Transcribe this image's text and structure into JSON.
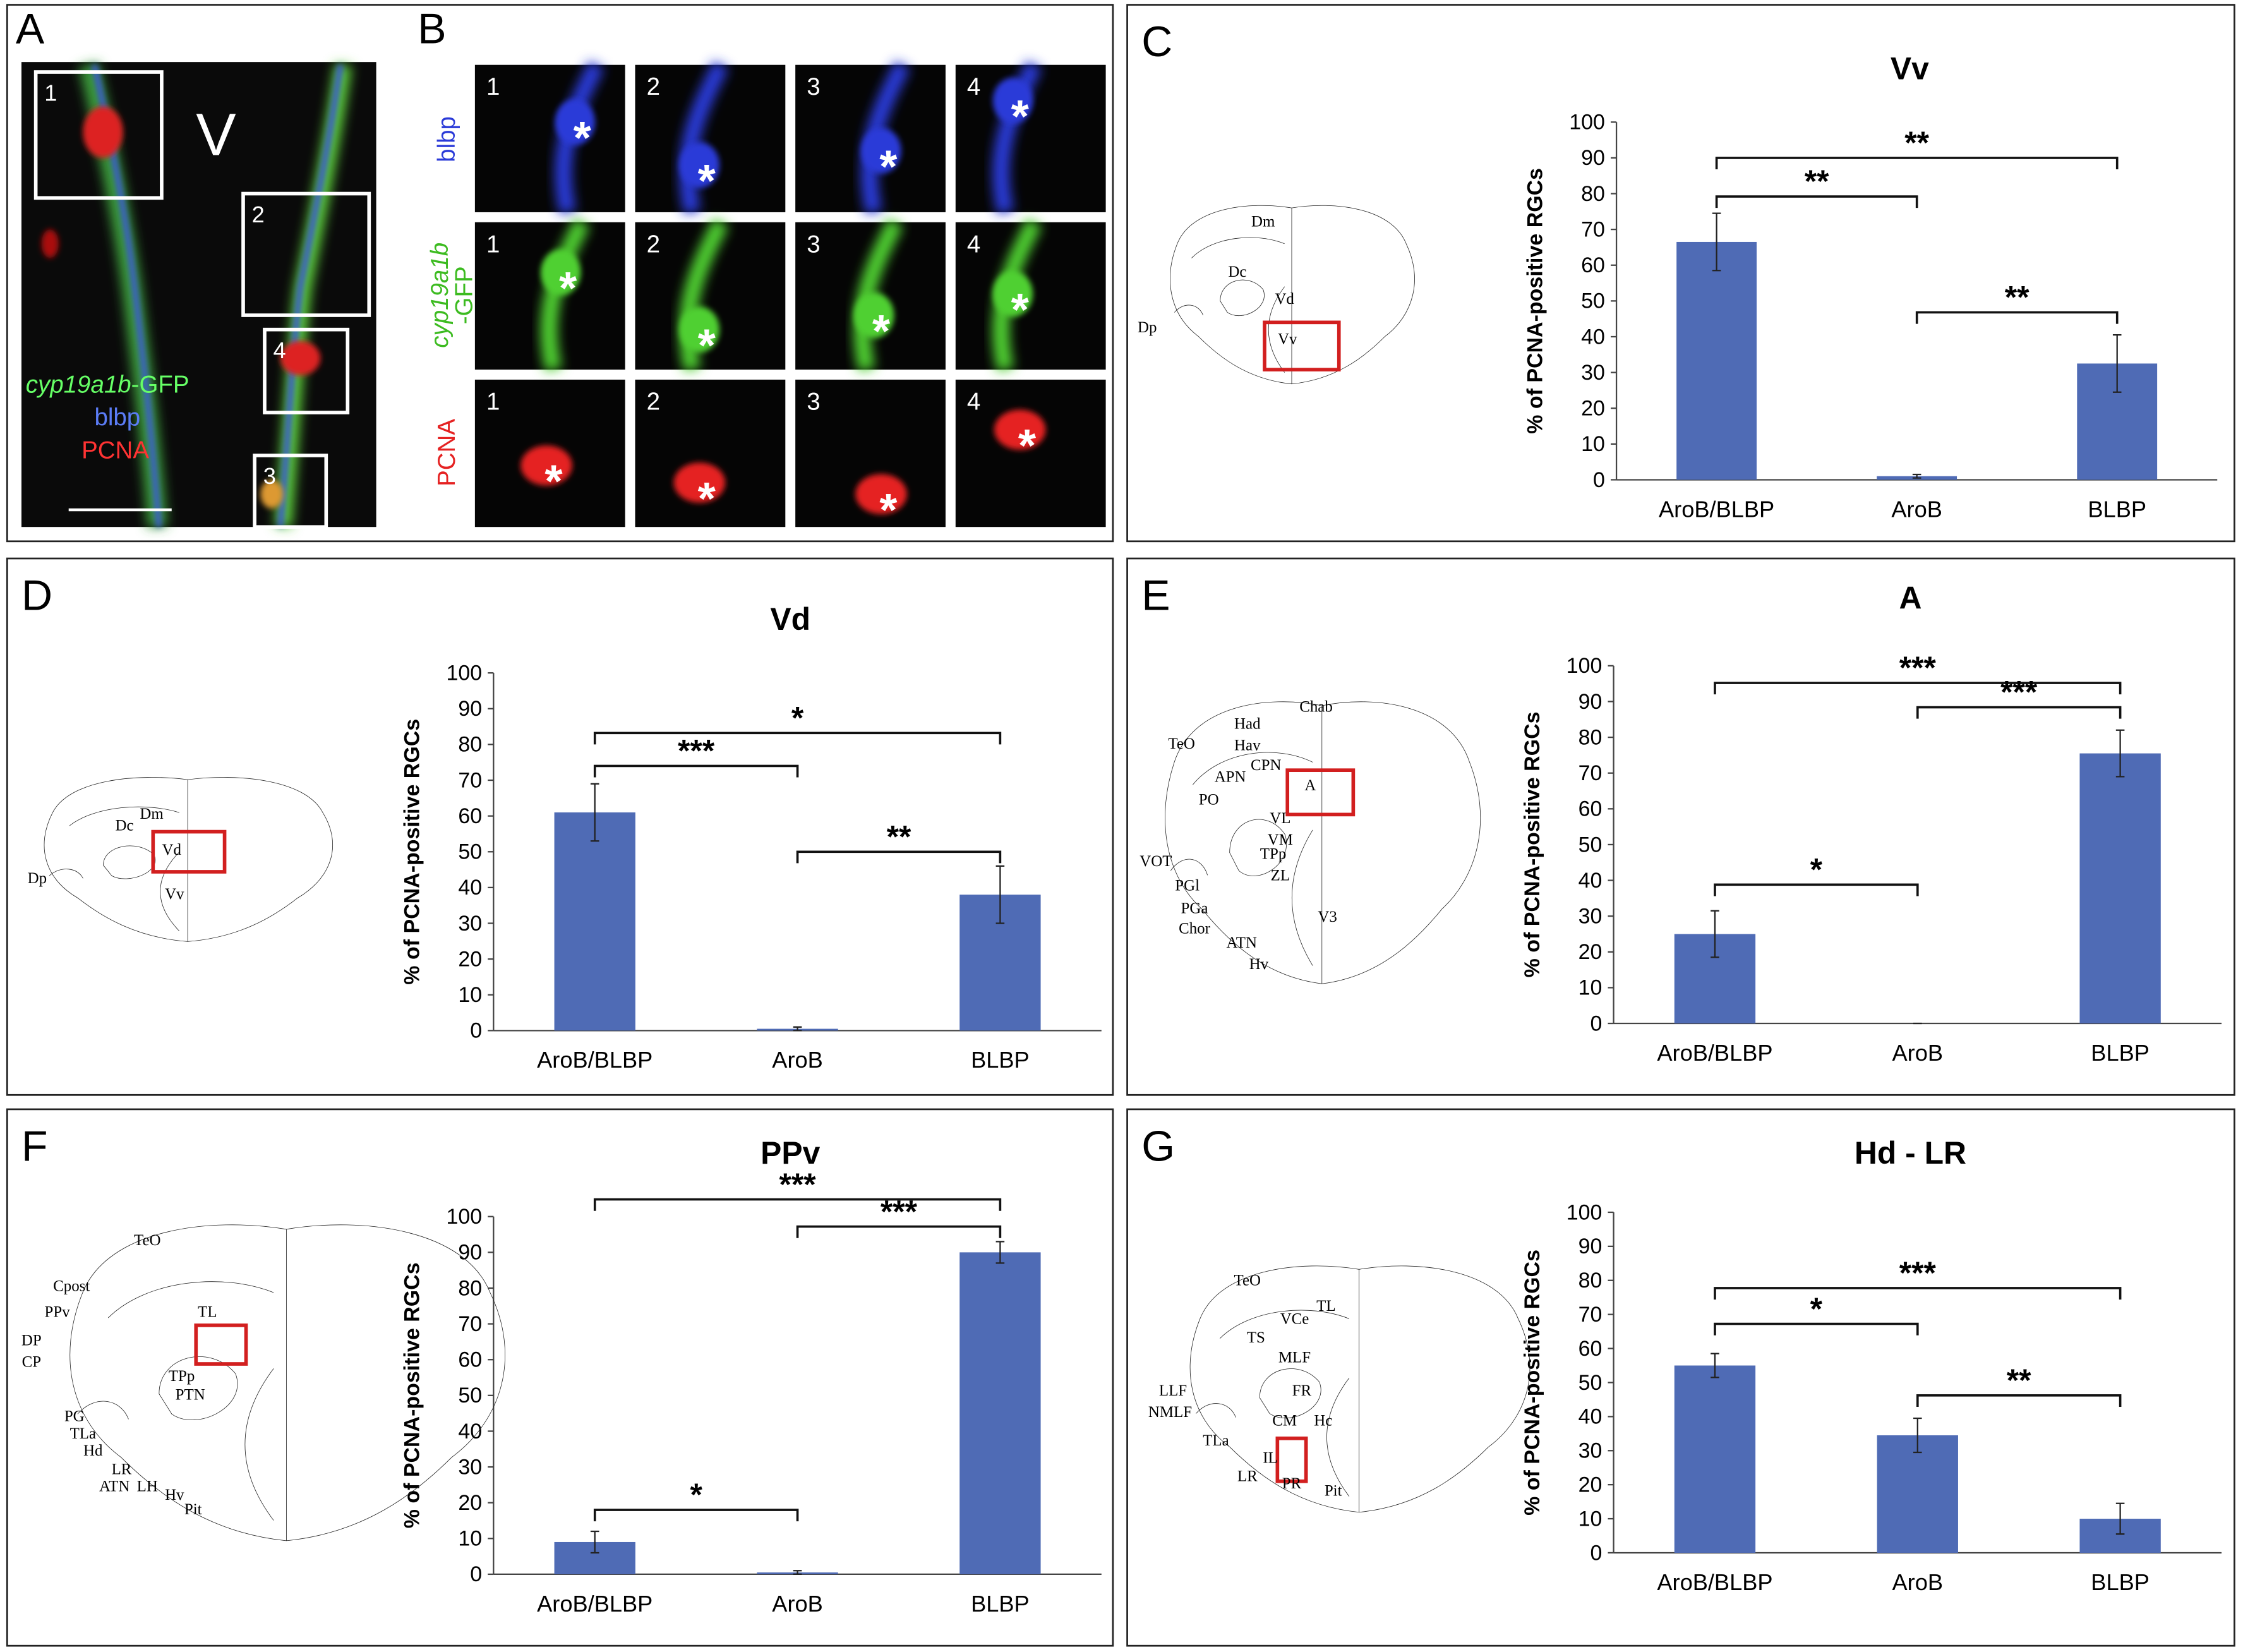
{
  "panel_a": {
    "letter": "A",
    "boxes": [
      "1",
      "2",
      "4",
      "3"
    ],
    "region": "V",
    "gene": "cyp19a1b",
    "gene_suffix": "-GFP",
    "channels": [
      "blbp",
      "PCNA"
    ]
  },
  "panel_b": {
    "letter": "B",
    "row_labels": [
      "blbp",
      "PCNA"
    ],
    "gfp_label": [
      "cyp19a1b",
      "-GFP"
    ],
    "cells": [
      "1",
      "2",
      "3",
      "4"
    ],
    "marker": "*"
  },
  "chart_data": [
    {
      "type": "bar",
      "panel": "C",
      "title": "Vv",
      "ylabel": "% of PCNA-positive RGCs",
      "categories": [
        "AroB/BLBP",
        "AroB",
        "BLBP"
      ],
      "values": [
        66.5,
        1,
        32.5
      ],
      "errors": [
        8,
        0.5,
        8
      ],
      "color": "#4f6bb5",
      "ylim": [
        0,
        100
      ],
      "yticks": [
        0,
        10,
        20,
        30,
        40,
        50,
        60,
        70,
        80,
        90,
        100
      ],
      "annotations": [
        {
          "text": "**",
          "between": [
            "AroB/BLBP",
            "AroB"
          ]
        },
        {
          "text": "**",
          "between": [
            "AroB/BLBP",
            "BLBP"
          ]
        },
        {
          "text": "**",
          "between": [
            "AroB",
            "BLBP"
          ]
        }
      ],
      "diagram_labels": [
        "Dm",
        "Dc",
        "Vd",
        "Vv",
        "Dp"
      ]
    },
    {
      "type": "bar",
      "panel": "D",
      "title": "Vd",
      "ylabel": "% of PCNA-positive RGCs",
      "categories": [
        "AroB/BLBP",
        "AroB",
        "BLBP"
      ],
      "values": [
        61,
        0.5,
        38
      ],
      "errors": [
        8,
        0.5,
        8
      ],
      "color": "#4f6bb5",
      "ylim": [
        0,
        100
      ],
      "yticks": [
        0,
        10,
        20,
        30,
        40,
        50,
        60,
        70,
        80,
        90,
        100
      ],
      "annotations": [
        {
          "text": "***",
          "between": [
            "AroB/BLBP",
            "AroB"
          ]
        },
        {
          "text": "*",
          "between": [
            "AroB/BLBP",
            "BLBP"
          ]
        },
        {
          "text": "**",
          "between": [
            "AroB",
            "BLBP"
          ]
        }
      ],
      "diagram_labels": [
        "Dm",
        "Dc",
        "Vd",
        "Vv",
        "Dp"
      ]
    },
    {
      "type": "bar",
      "panel": "E",
      "title": "A",
      "ylabel": "% of PCNA-positive RGCs",
      "categories": [
        "AroB/BLBP",
        "AroB",
        "BLBP"
      ],
      "values": [
        25,
        0,
        75.5
      ],
      "errors": [
        6.5,
        0,
        6.5
      ],
      "color": "#4f6bb5",
      "ylim": [
        0,
        100
      ],
      "yticks": [
        0,
        10,
        20,
        30,
        40,
        50,
        60,
        70,
        80,
        90,
        100
      ],
      "annotations": [
        {
          "text": "*",
          "between": [
            "AroB/BLBP",
            "AroB"
          ]
        },
        {
          "text": "***",
          "between": [
            "AroB/BLBP",
            "BLBP"
          ]
        },
        {
          "text": "***",
          "between": [
            "AroB",
            "BLBP"
          ]
        }
      ],
      "diagram_labels": [
        "Chab",
        "Had",
        "Hav",
        "TeO",
        "CPN",
        "APN",
        "A",
        "PO",
        "VL",
        "VM",
        "TPp",
        "VOT",
        "ZL",
        "PGl",
        "PGa",
        "Chor",
        "V3",
        "ATN",
        "Hv"
      ]
    },
    {
      "type": "bar",
      "panel": "F",
      "title": "PPv",
      "ylabel": "% of PCNA-positive RGCs",
      "categories": [
        "AroB/BLBP",
        "AroB",
        "BLBP"
      ],
      "values": [
        9,
        0.5,
        90
      ],
      "errors": [
        3,
        0.5,
        3
      ],
      "color": "#4f6bb5",
      "ylim": [
        0,
        100
      ],
      "yticks": [
        0,
        10,
        20,
        30,
        40,
        50,
        60,
        70,
        80,
        90,
        100
      ],
      "annotations": [
        {
          "text": "*",
          "between": [
            "AroB/BLBP",
            "AroB"
          ]
        },
        {
          "text": "***",
          "between": [
            "AroB/BLBP",
            "BLBP"
          ]
        },
        {
          "text": "***",
          "between": [
            "AroB",
            "BLBP"
          ]
        }
      ],
      "diagram_labels": [
        "TeO",
        "Cpost",
        "PPv",
        "TL",
        "DP",
        "CP",
        "TPp",
        "PTN",
        "PG",
        "TLa",
        "Hd",
        "LR",
        "ATN",
        "LH",
        "Hv",
        "Pit"
      ]
    },
    {
      "type": "bar",
      "panel": "G",
      "title": "Hd - LR",
      "ylabel": "% of PCNA-positive RGCs",
      "categories": [
        "AroB/BLBP",
        "AroB",
        "BLBP"
      ],
      "values": [
        55,
        34.5,
        10
      ],
      "errors": [
        3.5,
        5,
        4.5
      ],
      "color": "#4f6bb5",
      "ylim": [
        0,
        100
      ],
      "yticks": [
        0,
        10,
        20,
        30,
        40,
        50,
        60,
        70,
        80,
        90,
        100
      ],
      "annotations": [
        {
          "text": "*",
          "between": [
            "AroB/BLBP",
            "AroB"
          ]
        },
        {
          "text": "***",
          "between": [
            "AroB/BLBP",
            "BLBP"
          ]
        },
        {
          "text": "**",
          "between": [
            "AroB",
            "BLBP"
          ]
        }
      ],
      "diagram_labels": [
        "TeO",
        "TL",
        "VCe",
        "TS",
        "MLF",
        "FR",
        "LLF",
        "NMLF",
        "CM",
        "Hc",
        "TLa",
        "IL",
        "LR",
        "PR",
        "Pit"
      ]
    }
  ]
}
